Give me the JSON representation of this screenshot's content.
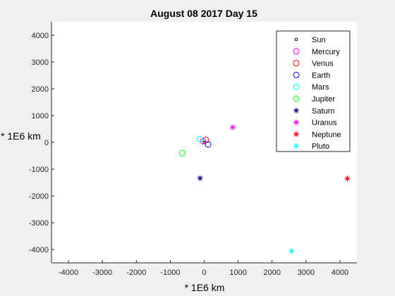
{
  "chart_data": {
    "type": "scatter",
    "title": "August 08 2017 Day 15",
    "xlabel": "* 1E6 km",
    "ylabel": "* 1E6 km",
    "xlim": [
      -4500,
      4500
    ],
    "ylim": [
      -4500,
      4500
    ],
    "xticks": [
      -4000,
      -3000,
      -2000,
      -1000,
      0,
      1000,
      2000,
      3000,
      4000
    ],
    "yticks": [
      -4000,
      -3000,
      -2000,
      -1000,
      0,
      1000,
      2000,
      3000,
      4000
    ],
    "legend_position": "top-right",
    "series": [
      {
        "name": "Sun",
        "marker": "dot",
        "color": "#000000",
        "x": 0,
        "y": 0
      },
      {
        "name": "Mercury",
        "marker": "circle",
        "color": "#ff00ff",
        "x": -30,
        "y": 40
      },
      {
        "name": "Venus",
        "marker": "circle",
        "color": "#ff0000",
        "x": 50,
        "y": 95
      },
      {
        "name": "Earth",
        "marker": "circle",
        "color": "#0000ff",
        "x": 115,
        "y": -80
      },
      {
        "name": "Mars",
        "marker": "circle",
        "color": "#00ffff",
        "x": -130,
        "y": 125
      },
      {
        "name": "Jupiter",
        "marker": "circle",
        "color": "#00ff00",
        "x": -650,
        "y": -400
      },
      {
        "name": "Saturn",
        "marker": "asterisk",
        "color": "#00008b",
        "x": -120,
        "y": -1340
      },
      {
        "name": "Uranus",
        "marker": "asterisk",
        "color": "#ff00ff",
        "x": 840,
        "y": 560
      },
      {
        "name": "Neptune",
        "marker": "asterisk",
        "color": "#ff0000",
        "x": 4220,
        "y": -1350
      },
      {
        "name": "Pluto",
        "marker": "asterisk",
        "color": "#00ffff",
        "x": 2580,
        "y": -4060
      }
    ]
  }
}
